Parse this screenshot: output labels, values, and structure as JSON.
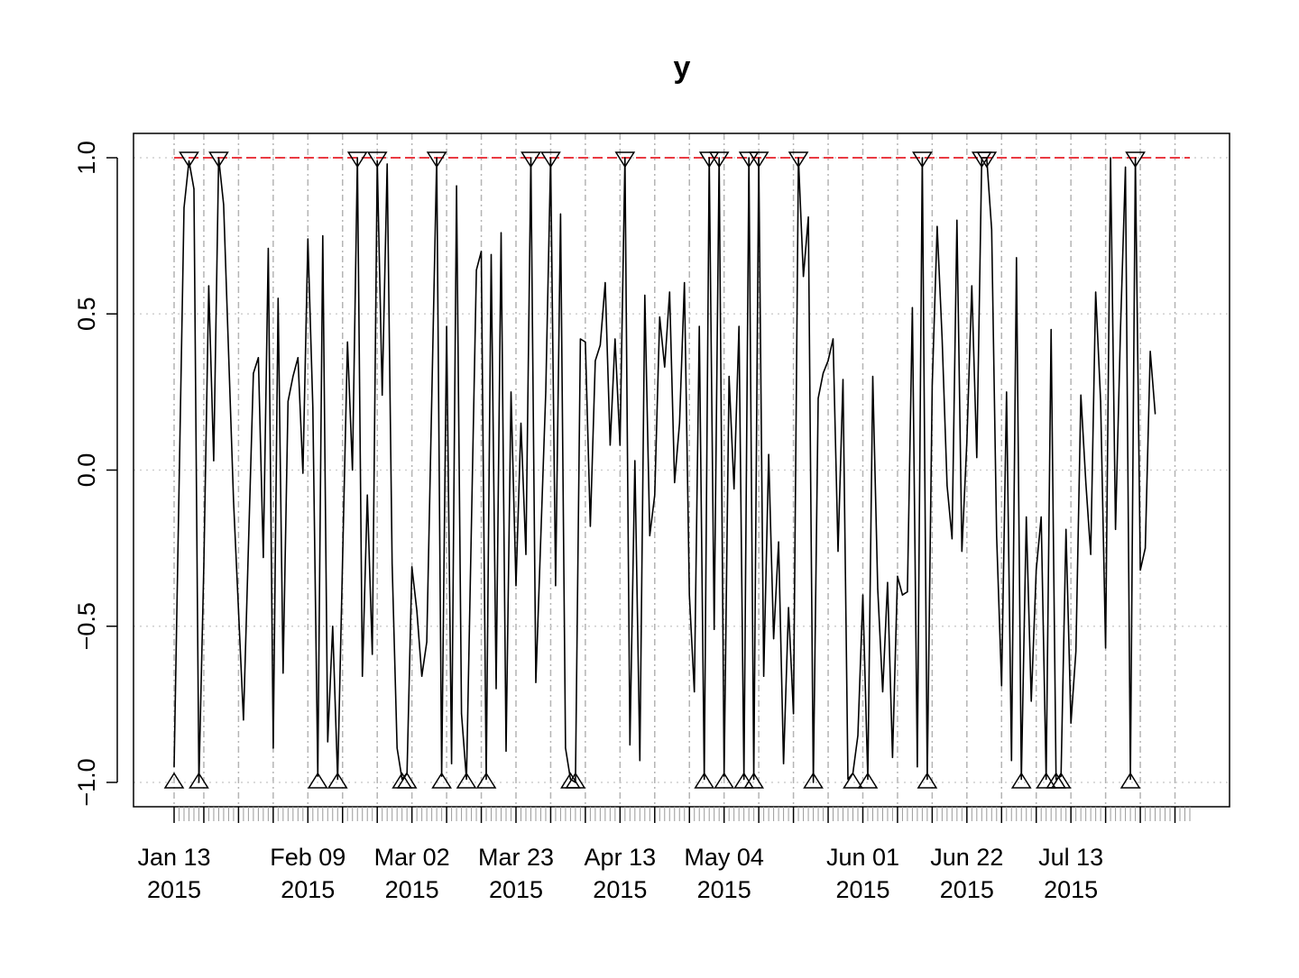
{
  "chart_data": {
    "type": "line",
    "title": "y",
    "xlabel": "",
    "ylabel": "",
    "x_start": "2015-01-13",
    "x_end": "2015-08-06",
    "ylim": [
      -1.0,
      1.0
    ],
    "y_ticks": [
      -1.0,
      -0.5,
      0.0,
      0.5,
      1.0
    ],
    "y_tick_labels": [
      "−1.0",
      "−0.5",
      "0.0",
      "0.5",
      "1.0"
    ],
    "x_ticks": [
      {
        "date": "2015-01-13",
        "line1": "Jan 13",
        "line2": "2015"
      },
      {
        "date": "2015-02-09",
        "line1": "Feb 09",
        "line2": "2015"
      },
      {
        "date": "2015-03-02",
        "line1": "Mar 02",
        "line2": "2015"
      },
      {
        "date": "2015-03-23",
        "line1": "Mar 23",
        "line2": "2015"
      },
      {
        "date": "2015-04-13",
        "line1": "Apr 13",
        "line2": "2015"
      },
      {
        "date": "2015-05-04",
        "line1": "May 04",
        "line2": "2015"
      },
      {
        "date": "2015-06-01",
        "line1": "Jun 01",
        "line2": "2015"
      },
      {
        "date": "2015-06-22",
        "line1": "Jun 22",
        "line2": "2015"
      },
      {
        "date": "2015-07-13",
        "line1": "Jul 13",
        "line2": "2015"
      }
    ],
    "v_grid": [
      "2015-01-13",
      "2015-01-19",
      "2015-01-26",
      "2015-02-02",
      "2015-02-09",
      "2015-02-16",
      "2015-02-23",
      "2015-03-02",
      "2015-03-09",
      "2015-03-16",
      "2015-03-23",
      "2015-03-30",
      "2015-04-06",
      "2015-04-13",
      "2015-04-20",
      "2015-04-27",
      "2015-05-04",
      "2015-05-11",
      "2015-05-18",
      "2015-05-25",
      "2015-06-01",
      "2015-06-08",
      "2015-06-15",
      "2015-06-22",
      "2015-06-29",
      "2015-07-06",
      "2015-07-13",
      "2015-07-20",
      "2015-07-27",
      "2015-08-03"
    ],
    "h_grid": [
      -1.0,
      -0.5,
      0.0,
      0.5,
      1.0
    ],
    "reference_line": {
      "y": 1.0,
      "color": "#e8202a",
      "style": "dashed"
    },
    "series": [
      {
        "color": "#000000",
        "points": [
          {
            "x": "2015-01-13",
            "y": -0.95
          },
          {
            "x": "2015-01-15",
            "y": 0.84
          },
          {
            "x": "2015-01-16",
            "y": 0.99
          },
          {
            "x": "2015-01-17",
            "y": 0.9
          },
          {
            "x": "2015-01-18",
            "y": -1.0
          },
          {
            "x": "2015-01-19",
            "y": -0.3
          },
          {
            "x": "2015-01-20",
            "y": 0.59
          },
          {
            "x": "2015-01-21",
            "y": 0.03
          },
          {
            "x": "2015-01-22",
            "y": 1.0
          },
          {
            "x": "2015-01-23",
            "y": 0.85
          },
          {
            "x": "2015-01-25",
            "y": -0.1
          },
          {
            "x": "2015-01-27",
            "y": -0.8
          },
          {
            "x": "2015-01-29",
            "y": 0.31
          },
          {
            "x": "2015-01-30",
            "y": 0.36
          },
          {
            "x": "2015-01-31",
            "y": -0.28
          },
          {
            "x": "2015-02-01",
            "y": 0.71
          },
          {
            "x": "2015-02-02",
            "y": -0.89
          },
          {
            "x": "2015-02-03",
            "y": 0.55
          },
          {
            "x": "2015-02-04",
            "y": -0.65
          },
          {
            "x": "2015-02-05",
            "y": 0.22
          },
          {
            "x": "2015-02-06",
            "y": 0.3
          },
          {
            "x": "2015-02-07",
            "y": 0.36
          },
          {
            "x": "2015-02-08",
            "y": -0.01
          },
          {
            "x": "2015-02-09",
            "y": 0.74
          },
          {
            "x": "2015-02-10",
            "y": 0.2
          },
          {
            "x": "2015-02-11",
            "y": -0.98
          },
          {
            "x": "2015-02-12",
            "y": 0.75
          },
          {
            "x": "2015-02-13",
            "y": -0.87
          },
          {
            "x": "2015-02-14",
            "y": -0.5
          },
          {
            "x": "2015-02-15",
            "y": -0.99
          },
          {
            "x": "2015-02-17",
            "y": 0.41
          },
          {
            "x": "2015-02-18",
            "y": 0.0
          },
          {
            "x": "2015-02-19",
            "y": 1.0
          },
          {
            "x": "2015-02-20",
            "y": -0.66
          },
          {
            "x": "2015-02-21",
            "y": -0.08
          },
          {
            "x": "2015-02-22",
            "y": -0.59
          },
          {
            "x": "2015-02-23",
            "y": 0.99
          },
          {
            "x": "2015-02-24",
            "y": 0.24
          },
          {
            "x": "2015-02-25",
            "y": 0.98
          },
          {
            "x": "2015-02-26",
            "y": -0.3
          },
          {
            "x": "2015-02-27",
            "y": -0.89
          },
          {
            "x": "2015-02-28",
            "y": -0.99
          },
          {
            "x": "2015-03-01",
            "y": -0.97
          },
          {
            "x": "2015-03-02",
            "y": -0.31
          },
          {
            "x": "2015-03-03",
            "y": -0.45
          },
          {
            "x": "2015-03-04",
            "y": -0.66
          },
          {
            "x": "2015-03-05",
            "y": -0.55
          },
          {
            "x": "2015-03-07",
            "y": 1.0
          },
          {
            "x": "2015-03-08",
            "y": -0.98
          },
          {
            "x": "2015-03-09",
            "y": 0.46
          },
          {
            "x": "2015-03-10",
            "y": -0.94
          },
          {
            "x": "2015-03-11",
            "y": 0.91
          },
          {
            "x": "2015-03-12",
            "y": -0.78
          },
          {
            "x": "2015-03-13",
            "y": -0.99
          },
          {
            "x": "2015-03-15",
            "y": 0.64
          },
          {
            "x": "2015-03-16",
            "y": 0.7
          },
          {
            "x": "2015-03-17",
            "y": -0.99
          },
          {
            "x": "2015-03-18",
            "y": 0.69
          },
          {
            "x": "2015-03-19",
            "y": -0.7
          },
          {
            "x": "2015-03-20",
            "y": 0.76
          },
          {
            "x": "2015-03-21",
            "y": -0.9
          },
          {
            "x": "2015-03-22",
            "y": 0.25
          },
          {
            "x": "2015-03-23",
            "y": -0.37
          },
          {
            "x": "2015-03-24",
            "y": 0.15
          },
          {
            "x": "2015-03-25",
            "y": -0.27
          },
          {
            "x": "2015-03-26",
            "y": 1.0
          },
          {
            "x": "2015-03-27",
            "y": -0.68
          },
          {
            "x": "2015-03-29",
            "y": 0.25
          },
          {
            "x": "2015-03-30",
            "y": 1.0
          },
          {
            "x": "2015-03-31",
            "y": -0.37
          },
          {
            "x": "2015-04-01",
            "y": 0.82
          },
          {
            "x": "2015-04-02",
            "y": -0.89
          },
          {
            "x": "2015-04-03",
            "y": -0.99
          },
          {
            "x": "2015-04-04",
            "y": -1.0
          },
          {
            "x": "2015-04-05",
            "y": 0.42
          },
          {
            "x": "2015-04-06",
            "y": 0.41
          },
          {
            "x": "2015-04-07",
            "y": -0.18
          },
          {
            "x": "2015-04-08",
            "y": 0.35
          },
          {
            "x": "2015-04-09",
            "y": 0.4
          },
          {
            "x": "2015-04-10",
            "y": 0.6
          },
          {
            "x": "2015-04-11",
            "y": 0.08
          },
          {
            "x": "2015-04-12",
            "y": 0.42
          },
          {
            "x": "2015-04-13",
            "y": 0.08
          },
          {
            "x": "2015-04-14",
            "y": 1.0
          },
          {
            "x": "2015-04-15",
            "y": -0.88
          },
          {
            "x": "2015-04-16",
            "y": 0.03
          },
          {
            "x": "2015-04-17",
            "y": -0.93
          },
          {
            "x": "2015-04-18",
            "y": 0.56
          },
          {
            "x": "2015-04-19",
            "y": -0.21
          },
          {
            "x": "2015-04-20",
            "y": -0.08
          },
          {
            "x": "2015-04-21",
            "y": 0.49
          },
          {
            "x": "2015-04-22",
            "y": 0.33
          },
          {
            "x": "2015-04-23",
            "y": 0.57
          },
          {
            "x": "2015-04-24",
            "y": -0.04
          },
          {
            "x": "2015-04-25",
            "y": 0.15
          },
          {
            "x": "2015-04-26",
            "y": 0.6
          },
          {
            "x": "2015-04-27",
            "y": -0.4
          },
          {
            "x": "2015-04-28",
            "y": -0.71
          },
          {
            "x": "2015-04-29",
            "y": 0.46
          },
          {
            "x": "2015-04-30",
            "y": -0.99
          },
          {
            "x": "2015-05-01",
            "y": 1.0
          },
          {
            "x": "2015-05-02",
            "y": -0.51
          },
          {
            "x": "2015-05-03",
            "y": 1.0
          },
          {
            "x": "2015-05-04",
            "y": -0.98
          },
          {
            "x": "2015-05-05",
            "y": 0.3
          },
          {
            "x": "2015-05-06",
            "y": -0.06
          },
          {
            "x": "2015-05-07",
            "y": 0.46
          },
          {
            "x": "2015-05-08",
            "y": -0.99
          },
          {
            "x": "2015-05-09",
            "y": 1.0
          },
          {
            "x": "2015-05-10",
            "y": -0.99
          },
          {
            "x": "2015-05-11",
            "y": 1.0
          },
          {
            "x": "2015-05-12",
            "y": -0.66
          },
          {
            "x": "2015-05-13",
            "y": 0.05
          },
          {
            "x": "2015-05-14",
            "y": -0.54
          },
          {
            "x": "2015-05-15",
            "y": -0.23
          },
          {
            "x": "2015-05-16",
            "y": -0.94
          },
          {
            "x": "2015-05-17",
            "y": -0.44
          },
          {
            "x": "2015-05-18",
            "y": -0.78
          },
          {
            "x": "2015-05-19",
            "y": 1.0
          },
          {
            "x": "2015-05-20",
            "y": 0.62
          },
          {
            "x": "2015-05-21",
            "y": 0.81
          },
          {
            "x": "2015-05-22",
            "y": -1.0
          },
          {
            "x": "2015-05-23",
            "y": 0.23
          },
          {
            "x": "2015-05-24",
            "y": 0.31
          },
          {
            "x": "2015-05-25",
            "y": 0.35
          },
          {
            "x": "2015-05-26",
            "y": 0.42
          },
          {
            "x": "2015-05-27",
            "y": -0.26
          },
          {
            "x": "2015-05-28",
            "y": 0.29
          },
          {
            "x": "2015-05-29",
            "y": -0.99
          },
          {
            "x": "2015-05-30",
            "y": -0.97
          },
          {
            "x": "2015-05-31",
            "y": -0.85
          },
          {
            "x": "2015-06-01",
            "y": -0.4
          },
          {
            "x": "2015-06-02",
            "y": -0.99
          },
          {
            "x": "2015-06-03",
            "y": 0.3
          },
          {
            "x": "2015-06-04",
            "y": -0.38
          },
          {
            "x": "2015-06-05",
            "y": -0.71
          },
          {
            "x": "2015-06-06",
            "y": -0.36
          },
          {
            "x": "2015-06-07",
            "y": -0.92
          },
          {
            "x": "2015-06-08",
            "y": -0.34
          },
          {
            "x": "2015-06-09",
            "y": -0.4
          },
          {
            "x": "2015-06-10",
            "y": -0.39
          },
          {
            "x": "2015-06-11",
            "y": 0.52
          },
          {
            "x": "2015-06-12",
            "y": -0.95
          },
          {
            "x": "2015-06-13",
            "y": 1.0
          },
          {
            "x": "2015-06-14",
            "y": -0.99
          },
          {
            "x": "2015-06-15",
            "y": 0.27
          },
          {
            "x": "2015-06-16",
            "y": 0.78
          },
          {
            "x": "2015-06-17",
            "y": 0.42
          },
          {
            "x": "2015-06-18",
            "y": -0.05
          },
          {
            "x": "2015-06-19",
            "y": -0.22
          },
          {
            "x": "2015-06-20",
            "y": 0.8
          },
          {
            "x": "2015-06-21",
            "y": -0.26
          },
          {
            "x": "2015-06-22",
            "y": 0.09
          },
          {
            "x": "2015-06-23",
            "y": 0.59
          },
          {
            "x": "2015-06-24",
            "y": 0.04
          },
          {
            "x": "2015-06-25",
            "y": 1.0
          },
          {
            "x": "2015-06-26",
            "y": 1.0
          },
          {
            "x": "2015-06-27",
            "y": 0.77
          },
          {
            "x": "2015-06-28",
            "y": -0.21
          },
          {
            "x": "2015-06-29",
            "y": -0.69
          },
          {
            "x": "2015-06-30",
            "y": 0.25
          },
          {
            "x": "2015-07-01",
            "y": -0.93
          },
          {
            "x": "2015-07-02",
            "y": 0.68
          },
          {
            "x": "2015-07-03",
            "y": -0.99
          },
          {
            "x": "2015-07-04",
            "y": -0.15
          },
          {
            "x": "2015-07-05",
            "y": -0.74
          },
          {
            "x": "2015-07-06",
            "y": -0.32
          },
          {
            "x": "2015-07-07",
            "y": -0.15
          },
          {
            "x": "2015-07-08",
            "y": -0.99
          },
          {
            "x": "2015-07-09",
            "y": 0.45
          },
          {
            "x": "2015-07-10",
            "y": -0.99
          },
          {
            "x": "2015-07-11",
            "y": -0.98
          },
          {
            "x": "2015-07-12",
            "y": -0.19
          },
          {
            "x": "2015-07-13",
            "y": -0.81
          },
          {
            "x": "2015-07-14",
            "y": -0.58
          },
          {
            "x": "2015-07-15",
            "y": 0.24
          },
          {
            "x": "2015-07-16",
            "y": -0.04
          },
          {
            "x": "2015-07-17",
            "y": -0.27
          },
          {
            "x": "2015-07-18",
            "y": 0.57
          },
          {
            "x": "2015-07-19",
            "y": 0.22
          },
          {
            "x": "2015-07-20",
            "y": -0.57
          },
          {
            "x": "2015-07-21",
            "y": 1.0
          },
          {
            "x": "2015-07-22",
            "y": -0.19
          },
          {
            "x": "2015-07-23",
            "y": 0.45
          },
          {
            "x": "2015-07-24",
            "y": 0.97
          },
          {
            "x": "2015-07-25",
            "y": -0.99
          },
          {
            "x": "2015-07-26",
            "y": 1.0
          },
          {
            "x": "2015-07-27",
            "y": -0.32
          },
          {
            "x": "2015-07-28",
            "y": -0.25
          },
          {
            "x": "2015-07-29",
            "y": 0.38
          },
          {
            "x": "2015-07-30",
            "y": 0.18
          }
        ]
      }
    ],
    "peaks": [
      "2015-01-16",
      "2015-01-22",
      "2015-02-19",
      "2015-02-23",
      "2015-03-07",
      "2015-03-26",
      "2015-03-30",
      "2015-04-14",
      "2015-05-01",
      "2015-05-03",
      "2015-05-09",
      "2015-05-11",
      "2015-05-19",
      "2015-06-13",
      "2015-06-25",
      "2015-06-26",
      "2015-07-26"
    ],
    "troughs": [
      "2015-01-13",
      "2015-01-18",
      "2015-02-11",
      "2015-02-15",
      "2015-02-28",
      "2015-03-01",
      "2015-03-08",
      "2015-03-13",
      "2015-03-17",
      "2015-04-03",
      "2015-04-04",
      "2015-04-30",
      "2015-05-04",
      "2015-05-08",
      "2015-05-10",
      "2015-05-22",
      "2015-05-30",
      "2015-06-02",
      "2015-06-14",
      "2015-07-03",
      "2015-07-08",
      "2015-07-10",
      "2015-07-11",
      "2015-07-25"
    ]
  }
}
